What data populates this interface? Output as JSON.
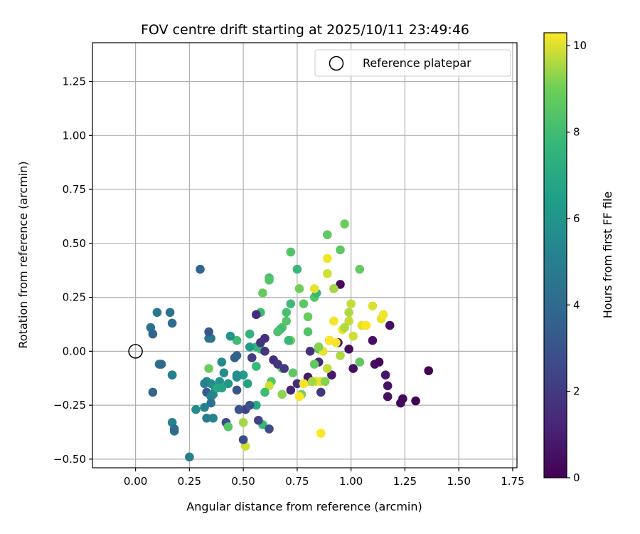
{
  "chart_data": {
    "type": "scatter",
    "title": "FOV centre drift starting at 2025/10/11 23:49:46",
    "xlabel": "Angular distance from reference (arcmin)",
    "ylabel": "Rotation from reference (arcmin)",
    "xlim": [
      -0.2,
      1.77
    ],
    "ylim": [
      -0.54,
      1.43
    ],
    "xticks": [
      "0.00",
      "0.25",
      "0.50",
      "0.75",
      "1.00",
      "1.25",
      "1.50",
      "1.75"
    ],
    "yticks": [
      "−0.50",
      "−0.25",
      "0.00",
      "0.25",
      "0.50",
      "0.75",
      "1.00",
      "1.25"
    ],
    "grid": true,
    "legend": {
      "label": "Reference platepar",
      "placement": "top-right"
    },
    "colorbar": {
      "label": "Hours from first FF file",
      "range": [
        0,
        10.3
      ],
      "ticks": [
        "0",
        "2",
        "4",
        "6",
        "8",
        "10"
      ],
      "colormap": "viridis"
    },
    "reference_point": {
      "x": 0.0,
      "y": 0.0
    },
    "points": [
      [
        0.68,
        0.11,
        8.3
      ],
      [
        0.7,
        0.14,
        8.5
      ],
      [
        0.78,
        0.22,
        8.6
      ],
      [
        0.83,
        0.25,
        8.4
      ],
      [
        0.8,
        0.16,
        8.9
      ],
      [
        0.89,
        0.54,
        8.7
      ],
      [
        0.97,
        0.59,
        8.9
      ],
      [
        0.72,
        0.46,
        8.4
      ],
      [
        0.95,
        0.47,
        8.6
      ],
      [
        1.04,
        0.38,
        8.8
      ],
      [
        0.75,
        0.38,
        7.8
      ],
      [
        0.62,
        0.34,
        8.0
      ],
      [
        0.62,
        0.33,
        8.4
      ],
      [
        0.59,
        0.27,
        8.8
      ],
      [
        0.76,
        0.29,
        9.0
      ],
      [
        0.84,
        0.27,
        7.7
      ],
      [
        0.72,
        0.22,
        7.9
      ],
      [
        0.58,
        0.18,
        7.9
      ],
      [
        0.7,
        0.18,
        8.2
      ],
      [
        0.67,
        0.1,
        7.9
      ],
      [
        0.66,
        0.09,
        8.3
      ],
      [
        0.72,
        0.05,
        9.0
      ],
      [
        0.71,
        0.05,
        7.8
      ],
      [
        0.8,
        0.09,
        8.4
      ],
      [
        0.85,
        0.01,
        8.2
      ],
      [
        0.73,
        -0.1,
        8.6
      ],
      [
        0.77,
        -0.2,
        9.1
      ],
      [
        0.8,
        -0.14,
        9.9
      ],
      [
        0.86,
        -0.14,
        10.0
      ],
      [
        0.84,
        -0.14,
        10.1
      ],
      [
        0.68,
        -0.08,
        8.9
      ],
      [
        0.68,
        -0.2,
        9.3
      ],
      [
        0.63,
        -0.14,
        8.5
      ],
      [
        0.56,
        -0.07,
        7.8
      ],
      [
        0.62,
        -0.16,
        9.9
      ],
      [
        0.6,
        -0.19,
        7.9
      ],
      [
        0.58,
        0.01,
        8.1
      ],
      [
        0.56,
        0.02,
        7.6
      ],
      [
        0.53,
        0.08,
        7.5
      ],
      [
        0.47,
        0.05,
        8.0
      ],
      [
        0.44,
        0.07,
        6.0
      ],
      [
        0.53,
        0.02,
        6.3
      ],
      [
        0.5,
        -0.11,
        6.4
      ],
      [
        0.52,
        -0.15,
        6.6
      ],
      [
        0.56,
        -0.25,
        7.0
      ],
      [
        0.59,
        -0.34,
        7.8
      ],
      [
        0.5,
        -0.33,
        9.5
      ],
      [
        0.51,
        -0.44,
        9.9
      ],
      [
        0.57,
        -0.32,
        2.3
      ],
      [
        0.62,
        -0.36,
        2.7
      ],
      [
        0.5,
        -0.41,
        2.8
      ],
      [
        0.51,
        -0.27,
        2.3
      ],
      [
        0.48,
        -0.27,
        3.0
      ],
      [
        0.53,
        -0.25,
        2.9
      ],
      [
        0.42,
        -0.33,
        2.8
      ],
      [
        0.47,
        -0.18,
        3.1
      ],
      [
        0.43,
        -0.15,
        6.1
      ],
      [
        0.41,
        -0.1,
        5.6
      ],
      [
        0.37,
        -0.17,
        6.1
      ],
      [
        0.4,
        -0.05,
        5.6
      ],
      [
        0.33,
        -0.14,
        5.5
      ],
      [
        0.35,
        -0.15,
        5.7
      ],
      [
        0.33,
        -0.19,
        3.3
      ],
      [
        0.35,
        -0.21,
        5.2
      ],
      [
        0.35,
        -0.24,
        4.3
      ],
      [
        0.36,
        -0.2,
        5.3
      ],
      [
        0.34,
        0.06,
        4.3
      ],
      [
        0.35,
        0.06,
        4.5
      ],
      [
        0.34,
        0.09,
        3.2
      ],
      [
        0.3,
        0.38,
        3.8
      ],
      [
        0.32,
        -0.15,
        5.1
      ],
      [
        0.28,
        -0.27,
        5.6
      ],
      [
        0.32,
        -0.26,
        5.2
      ],
      [
        0.33,
        -0.31,
        4.8
      ],
      [
        0.36,
        -0.31,
        5.2
      ],
      [
        0.43,
        -0.35,
        8.5
      ],
      [
        0.47,
        -0.11,
        5.9
      ],
      [
        0.47,
        -0.12,
        5.7
      ],
      [
        0.46,
        -0.03,
        3.4
      ],
      [
        0.47,
        -0.02,
        3.7
      ],
      [
        0.39,
        -0.14,
        5.9
      ],
      [
        0.34,
        -0.08,
        8.9
      ],
      [
        0.38,
        -0.17,
        7.0
      ],
      [
        0.4,
        -0.17,
        6.8
      ],
      [
        0.1,
        0.18,
        4.5
      ],
      [
        0.16,
        0.18,
        4.3
      ],
      [
        0.07,
        0.11,
        4.3
      ],
      [
        0.17,
        0.13,
        4.1
      ],
      [
        0.08,
        0.08,
        3.8
      ],
      [
        0.11,
        -0.06,
        4.4
      ],
      [
        0.12,
        -0.06,
        4.0
      ],
      [
        0.17,
        -0.11,
        5.0
      ],
      [
        0.08,
        -0.19,
        3.7
      ],
      [
        0.17,
        -0.33,
        5.2
      ],
      [
        0.18,
        -0.37,
        4.4
      ],
      [
        0.18,
        -0.36,
        4.0
      ],
      [
        0.25,
        -0.49,
        5.0
      ],
      [
        0.17,
        -0.11,
        5.0
      ],
      [
        0.56,
        0.17,
        1.5
      ],
      [
        0.6,
        0.06,
        1.6
      ],
      [
        0.58,
        0.04,
        1.7
      ],
      [
        0.6,
        0.0,
        1.8
      ],
      [
        0.54,
        -0.03,
        2.1
      ],
      [
        0.64,
        -0.04,
        1.4
      ],
      [
        0.66,
        -0.06,
        1.8
      ],
      [
        0.69,
        -0.08,
        2.0
      ],
      [
        0.72,
        -0.18,
        1.2
      ],
      [
        0.75,
        -0.15,
        1.5
      ],
      [
        0.8,
        -0.12,
        0.9
      ],
      [
        0.81,
        0.0,
        1.6
      ],
      [
        0.85,
        -0.05,
        1.3
      ],
      [
        0.86,
        -0.19,
        1.9
      ],
      [
        0.9,
        0.05,
        0.6
      ],
      [
        0.91,
        -0.11,
        0.8
      ],
      [
        0.94,
        0.04,
        0.9
      ],
      [
        0.95,
        0.31,
        0.3
      ],
      [
        0.99,
        0.01,
        0.4
      ],
      [
        1.01,
        -0.08,
        0.5
      ],
      [
        1.1,
        0.05,
        0.5
      ],
      [
        1.11,
        -0.06,
        0.4
      ],
      [
        1.13,
        -0.05,
        0.3
      ],
      [
        1.16,
        -0.11,
        0.7
      ],
      [
        1.17,
        -0.16,
        0.6
      ],
      [
        1.17,
        -0.21,
        0.5
      ],
      [
        1.18,
        0.12,
        0.4
      ],
      [
        1.23,
        -0.24,
        0.3
      ],
      [
        1.24,
        -0.22,
        0.2
      ],
      [
        1.3,
        -0.23,
        0.1
      ],
      [
        1.36,
        -0.09,
        0.0
      ],
      [
        0.83,
        0.29,
        10.1
      ],
      [
        0.89,
        0.43,
        10.2
      ],
      [
        0.89,
        0.36,
        9.9
      ],
      [
        0.92,
        0.29,
        9.5
      ],
      [
        0.92,
        0.14,
        10.2
      ],
      [
        0.96,
        0.1,
        10.2
      ],
      [
        0.99,
        0.18,
        9.6
      ],
      [
        1.0,
        0.22,
        9.8
      ],
      [
        0.99,
        0.14,
        9.8
      ],
      [
        0.97,
        0.11,
        9.6
      ],
      [
        1.01,
        0.07,
        9.9
      ],
      [
        1.05,
        0.12,
        10.1
      ],
      [
        1.07,
        0.12,
        10.3
      ],
      [
        1.1,
        0.21,
        10.0
      ],
      [
        1.14,
        0.15,
        10.1
      ],
      [
        1.15,
        0.17,
        10.2
      ],
      [
        0.9,
        0.05,
        10.3
      ],
      [
        0.93,
        0.04,
        10.2
      ],
      [
        0.95,
        -0.02,
        9.6
      ],
      [
        0.87,
        0.0,
        10.1
      ],
      [
        0.85,
        0.02,
        9.2
      ],
      [
        0.83,
        -0.06,
        8.7
      ],
      [
        0.88,
        -0.14,
        9.2
      ],
      [
        0.89,
        -0.08,
        9.8
      ],
      [
        1.04,
        -0.05,
        8.7
      ],
      [
        0.86,
        -0.38,
        10.3
      ],
      [
        0.76,
        -0.21,
        10.3
      ],
      [
        0.78,
        -0.15,
        10.2
      ],
      [
        0.82,
        -0.14,
        9.5
      ]
    ]
  }
}
